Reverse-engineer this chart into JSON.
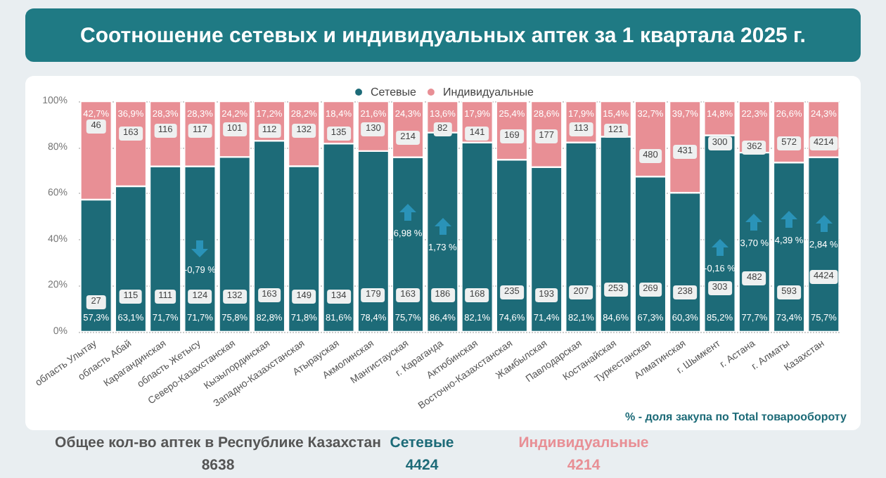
{
  "chart_data": {
    "type": "bar",
    "title": "Соотношение сетевых и индивидуальных аптек за 1 квартала 2025 г.",
    "categories": [
      "область Улытау",
      "область Абай",
      "Карагандинская",
      "область Жетысу",
      "Северо-Казахстанская",
      "Кызылординская",
      "Западно-Казахстанская",
      "Атырауская",
      "Акмолинская",
      "Мангистауская",
      "г. Караганда",
      "Актюбинская",
      "Восточно-Казахстанская",
      "Жамбылская",
      "Павлодарская",
      "Костанайская",
      "Туркестанская",
      "Алматинская",
      "г. Шымкент",
      "г. Астана",
      "г. Алматы",
      "Казахстан"
    ],
    "series": [
      {
        "name": "Сетевые",
        "color": "#1d6b78",
        "values": [
          57.3,
          63.1,
          71.7,
          71.7,
          75.8,
          82.8,
          71.8,
          81.6,
          78.4,
          75.7,
          86.4,
          82.1,
          74.6,
          71.4,
          82.1,
          84.6,
          67.3,
          60.3,
          85.2,
          77.7,
          73.4,
          75.7
        ],
        "value_labels": [
          "57,3%",
          "63,1%",
          "71,7%",
          "71,7%",
          "75,8%",
          "82,8%",
          "71,8%",
          "81,6%",
          "78,4%",
          "75,7%",
          "86,4%",
          "82,1%",
          "74,6%",
          "71,4%",
          "82,1%",
          "84,6%",
          "67,3%",
          "60,3%",
          "85,2%",
          "77,7%",
          "73,4%",
          "75,7%"
        ]
      },
      {
        "name": "Индивидуальные",
        "color": "#e88f95",
        "values": [
          42.7,
          36.9,
          28.3,
          28.3,
          24.2,
          17.2,
          28.2,
          18.4,
          21.6,
          24.3,
          13.6,
          17.9,
          25.4,
          28.6,
          17.9,
          15.4,
          32.7,
          39.7,
          14.8,
          22.3,
          26.6,
          24.3
        ],
        "value_labels": [
          "42,7%",
          "36,9%",
          "28,3%",
          "28,3%",
          "24,2%",
          "17,2%",
          "28,2%",
          "18,4%",
          "21,6%",
          "24,3%",
          "13,6%",
          "17,9%",
          "25,4%",
          "28,6%",
          "17,9%",
          "15,4%",
          "32,7%",
          "39,7%",
          "14,8%",
          "22,3%",
          "26,6%",
          "24,3%"
        ]
      }
    ],
    "stacked": true,
    "ylim": [
      0,
      100
    ],
    "yticks": [
      {
        "value": 0,
        "label": "0%"
      },
      {
        "value": 20,
        "label": "20%"
      },
      {
        "value": 40,
        "label": "40%"
      },
      {
        "value": 60,
        "label": "60%"
      },
      {
        "value": 80,
        "label": "80%"
      },
      {
        "value": 100,
        "label": "100%"
      }
    ],
    "grid": "y",
    "legend": "top",
    "annotations": [
      "-0,79 %",
      "6,98 %",
      "1,73 %",
      "-0,16 %",
      "3,70 %",
      "4,39 %",
      "2,84 %",
      {
        "text": "46",
        "x": "область Улытау",
        "y": 89
      },
      {
        "text": "163",
        "x": "область Абай",
        "y": 86
      },
      {
        "text": "116",
        "x": "Карагандинская",
        "y": 87
      },
      {
        "text": "117",
        "x": "область Жетысу",
        "y": 87
      },
      {
        "text": "101",
        "x": "Северо-Казахстанская",
        "y": 88
      },
      {
        "text": "112",
        "x": "Кызылординская",
        "y": 87
      },
      {
        "text": "132",
        "x": "Западно-Казахстанская",
        "y": 87
      },
      {
        "text": "135",
        "x": "Атырауская",
        "y": 86
      },
      {
        "text": "130",
        "x": "Акмолинская",
        "y": 88
      },
      {
        "text": "214",
        "x": "Мангистауская",
        "y": 84
      },
      {
        "text": "82",
        "x": "г. Караганда",
        "y": 88
      },
      {
        "text": "141",
        "x": "Актюбинская",
        "y": 86
      },
      {
        "text": "169",
        "x": "Восточно-Казахстанская",
        "y": 85
      },
      {
        "text": "177",
        "x": "Жамбылская",
        "y": 85
      },
      {
        "text": "113",
        "x": "Павлодарская",
        "y": 88
      },
      {
        "text": "121",
        "x": "Костанайская",
        "y": 87
      },
      {
        "text": "480",
        "x": "Туркестанская",
        "y": 76
      },
      {
        "text": "431",
        "x": "Алматинская",
        "y": 78
      },
      {
        "text": "300",
        "x": "г. Шымкент",
        "y": 82
      },
      {
        "text": "362",
        "x": "г. Астана",
        "y": 80
      },
      {
        "text": "572",
        "x": "г. Алматы",
        "y": 82
      },
      {
        "text": "4214",
        "x": "Казахстан",
        "y": 82
      },
      {
        "text": "27",
        "x": "область Улытау",
        "y": 13
      },
      {
        "text": "115",
        "x": "область Абай",
        "y": 15
      },
      {
        "text": "111",
        "x": "Карагандинская",
        "y": 15
      },
      {
        "text": "124",
        "x": "область Жетысу",
        "y": 15
      },
      {
        "text": "132",
        "x": "Северо-Казахстанская",
        "y": 15
      },
      {
        "text": "163",
        "x": "Кызылординская",
        "y": 16
      },
      {
        "text": "149",
        "x": "Западно-Казахстанская",
        "y": 15
      },
      {
        "text": "134",
        "x": "Атырауская",
        "y": 15
      },
      {
        "text": "179",
        "x": "Акмолинская",
        "y": 16
      },
      {
        "text": "163",
        "x": "Мангистауская",
        "y": 16
      },
      {
        "text": "186",
        "x": "г. Караганда",
        "y": 16
      },
      {
        "text": "168",
        "x": "Актюбинская",
        "y": 16
      },
      {
        "text": "235",
        "x": "Восточно-Казахстанская",
        "y": 17
      },
      {
        "text": "193",
        "x": "Жамбылская",
        "y": 16
      },
      {
        "text": "207",
        "x": "Павлодарская",
        "y": 17
      },
      {
        "text": "253",
        "x": "Костанайская",
        "y": 18
      },
      {
        "text": "269",
        "x": "Туркестанская",
        "y": 18
      },
      {
        "text": "238",
        "x": "Алматинская",
        "y": 17
      },
      {
        "text": "303",
        "x": "г. Шымкент",
        "y": 19
      },
      {
        "text": "482",
        "x": "г. Астана",
        "y": 23
      },
      {
        "text": "593",
        "x": "г. Алматы",
        "y": 17
      },
      {
        "text": "4424",
        "x": "Казахстан",
        "y": 24
      },
      "% - доля закупа по Total товарообороту",
      "Общее кол-во аптек в Республике Казахстан",
      "8638",
      "Сетевые",
      "4424",
      "Индивидуальные",
      "4214"
    ]
  }
}
